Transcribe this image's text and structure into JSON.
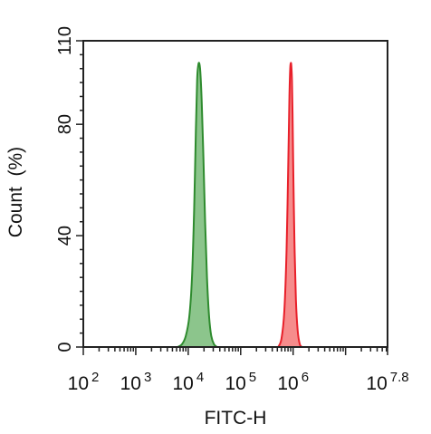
{
  "chart_data": {
    "type": "area",
    "title": "",
    "xlabel": "FITC-H",
    "ylabel": "Count  (%)",
    "x_scale": "log10",
    "xlim": [
      100,
      63095734
    ],
    "ylim": [
      0,
      110
    ],
    "grid": false,
    "legend": "none",
    "x_ticks": [
      {
        "base": "10",
        "exp": "2",
        "value": 100
      },
      {
        "base": "10",
        "exp": "3",
        "value": 1000
      },
      {
        "base": "10",
        "exp": "4",
        "value": 10000
      },
      {
        "base": "10",
        "exp": "5",
        "value": 100000
      },
      {
        "base": "10",
        "exp": "6",
        "value": 1000000
      },
      {
        "base": "10",
        "exp": "7.8",
        "value": 63095734
      }
    ],
    "y_ticks": [
      {
        "label": "0",
        "value": 0
      },
      {
        "label": "40",
        "value": 40
      },
      {
        "label": "80",
        "value": 80
      },
      {
        "label": "110",
        "value": 110
      }
    ],
    "series": [
      {
        "color": "#2e8b2e",
        "fill": "#7fbf7f",
        "x": [
          6300,
          7600,
          9000,
          10500,
          11800,
          13000,
          14000,
          14800,
          15500,
          16200,
          17000,
          18100,
          19500,
          21000,
          22800,
          25000,
          27500,
          31000,
          35500
        ],
        "y": [
          0,
          1,
          4,
          11,
          25,
          50,
          78,
          96,
          101,
          102,
          99,
          88,
          68,
          45,
          25,
          11,
          4,
          1,
          0
        ]
      },
      {
        "color": "#e8202a",
        "fill": "#f58080",
        "x": [
          520000,
          600000,
          680000,
          750000,
          810000,
          850000,
          880000,
          905000,
          925000,
          950000,
          975000,
          1010000,
          1060000,
          1130000,
          1220000,
          1340000,
          1480000
        ],
        "y": [
          0,
          3,
          13,
          35,
          67,
          90,
          100,
          102,
          101,
          96,
          84,
          62,
          38,
          17,
          6,
          1,
          0
        ]
      }
    ]
  }
}
